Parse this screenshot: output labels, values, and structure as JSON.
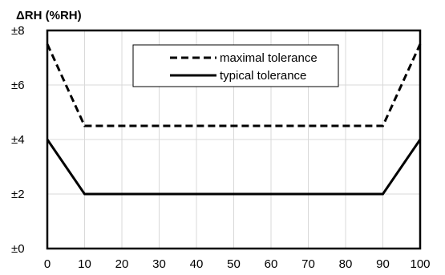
{
  "chart_data": {
    "type": "line",
    "title": "",
    "ylabel": "ΔRH (%RH)",
    "xlabel": "",
    "xlim": [
      0,
      100
    ],
    "ylim": [
      0,
      8
    ],
    "x_ticks": [
      0,
      10,
      20,
      30,
      40,
      50,
      60,
      70,
      80,
      90,
      100
    ],
    "x_tick_labels": [
      "0",
      "10",
      "20",
      "30",
      "40",
      "50",
      "60",
      "70",
      "80",
      "90",
      "100"
    ],
    "y_ticks": [
      0,
      2,
      4,
      6,
      8
    ],
    "y_tick_labels": [
      "±0",
      "±2",
      "±4",
      "±6",
      "±8"
    ],
    "grid": true,
    "legend_position": "top-center",
    "series": [
      {
        "name": "maximal tolerance",
        "style": "dashed",
        "color": "#000000",
        "x": [
          0,
          10,
          90,
          100
        ],
        "y": [
          7.5,
          4.5,
          4.5,
          7.5
        ]
      },
      {
        "name": "typical tolerance",
        "style": "solid",
        "color": "#000000",
        "x": [
          0,
          10,
          90,
          100
        ],
        "y": [
          4,
          2,
          2,
          4
        ]
      }
    ]
  }
}
